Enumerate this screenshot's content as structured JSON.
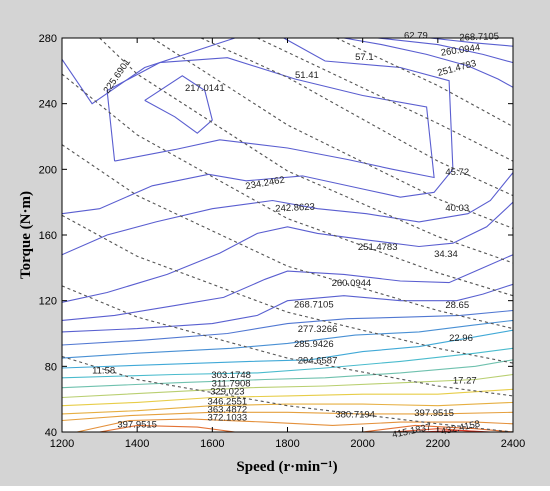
{
  "chart_data": {
    "type": "contour",
    "title": "",
    "xlabel": "Speed (r·min⁻¹)",
    "ylabel": "Torque (N·m)",
    "xlim": [
      1200,
      2400
    ],
    "ylim": [
      40,
      280
    ],
    "x_ticks": [
      "1200",
      "1400",
      "1600",
      "1800",
      "2000",
      "2200",
      "2400"
    ],
    "y_ticks": [
      "40",
      "80",
      "120",
      "160",
      "200",
      "240",
      "280"
    ],
    "grid": false,
    "colors": {
      "frame": "#d4d4d4",
      "plot_bg": "#ffffff",
      "contour_blue": "#5a5ed0",
      "contour_cyan": "#3cb8d8",
      "contour_yellow": "#e8d84a",
      "contour_red": "#e03a2a",
      "dashed": "#555555"
    },
    "efficiency_contours": [
      {
        "label": "217.0141",
        "points": [
          [
            1420,
            242
          ],
          [
            1520,
            257
          ],
          [
            1580,
            248
          ],
          [
            1600,
            230
          ],
          [
            1560,
            222
          ],
          [
            1500,
            232
          ],
          [
            1420,
            242
          ]
        ]
      },
      {
        "label": "225.6901",
        "points": [
          [
            1340,
            205
          ],
          [
            1320,
            248
          ],
          [
            1460,
            265
          ],
          [
            1640,
            268
          ],
          [
            1820,
            255
          ],
          [
            2000,
            245
          ],
          [
            2170,
            238
          ],
          [
            2190,
            195
          ],
          [
            2080,
            200
          ],
          [
            1960,
            206
          ],
          [
            1800,
            213
          ],
          [
            1620,
            218
          ],
          [
            1500,
            212
          ],
          [
            1340,
            205
          ]
        ]
      },
      {
        "label": "234.2462",
        "points": [
          [
            1200,
            267
          ],
          [
            1280,
            240
          ],
          [
            1420,
            262
          ],
          [
            1660,
            280
          ]
        ]
      },
      {
        "label": "234.2462",
        "points": [
          [
            1790,
            280
          ],
          [
            1900,
            266
          ],
          [
            2100,
            262
          ],
          [
            2230,
            254
          ],
          [
            2240,
            200
          ],
          [
            2190,
            186
          ],
          [
            2100,
            183
          ],
          [
            2000,
            188
          ],
          [
            1840,
            196
          ],
          [
            1690,
            193
          ],
          [
            1590,
            197
          ],
          [
            1440,
            190
          ],
          [
            1300,
            176
          ],
          [
            1200,
            173
          ]
        ]
      },
      {
        "label": "242.8623",
        "points": [
          [
            1200,
            148
          ],
          [
            1320,
            160
          ],
          [
            1450,
            168
          ],
          [
            1600,
            176
          ],
          [
            1760,
            181
          ],
          [
            1880,
            176
          ],
          [
            2010,
            173
          ],
          [
            2150,
            168
          ],
          [
            2280,
            173
          ],
          [
            2340,
            181
          ],
          [
            2400,
            198
          ]
        ]
      },
      {
        "label": "251.4783",
        "points": [
          [
            1200,
            119
          ],
          [
            1320,
            125
          ],
          [
            1480,
            136
          ],
          [
            1620,
            149
          ],
          [
            1720,
            161
          ],
          [
            1800,
            165
          ],
          [
            1880,
            161
          ],
          [
            2010,
            157
          ],
          [
            2150,
            153
          ],
          [
            2240,
            155
          ],
          [
            2330,
            165
          ],
          [
            2400,
            180
          ]
        ]
      },
      {
        "label": "251.4783",
        "points": [
          [
            1950,
            280
          ],
          [
            2050,
            276
          ],
          [
            2170,
            270
          ],
          [
            2280,
            263
          ],
          [
            2360,
            255
          ],
          [
            2400,
            250
          ]
        ]
      },
      {
        "label": "260.0944",
        "points": [
          [
            1200,
            108
          ],
          [
            1340,
            111
          ],
          [
            1500,
            117
          ],
          [
            1630,
            122
          ],
          [
            1740,
            133
          ],
          [
            1800,
            138
          ],
          [
            1950,
            136
          ],
          [
            2100,
            132
          ],
          [
            2230,
            131
          ],
          [
            2300,
            138
          ],
          [
            2400,
            148
          ]
        ]
      },
      {
        "label": "260.0944",
        "points": [
          [
            2040,
            280
          ],
          [
            2200,
            276
          ],
          [
            2320,
            270
          ],
          [
            2400,
            265
          ]
        ]
      },
      {
        "label": "268.7105",
        "points": [
          [
            1200,
            101
          ],
          [
            1400,
            103
          ],
          [
            1600,
            106
          ],
          [
            1720,
            111
          ],
          [
            1800,
            120
          ],
          [
            1950,
            123
          ],
          [
            2100,
            120
          ],
          [
            2250,
            120
          ],
          [
            2320,
            124
          ],
          [
            2400,
            130
          ]
        ]
      },
      {
        "label": "268.7105",
        "points": [
          [
            2180,
            280
          ],
          [
            2300,
            277
          ],
          [
            2400,
            275
          ]
        ]
      },
      {
        "label": "277.3266",
        "points": [
          [
            1200,
            93
          ],
          [
            1420,
            96
          ],
          [
            1640,
            100
          ],
          [
            1800,
            106
          ],
          [
            1960,
            109
          ],
          [
            2120,
            110
          ],
          [
            2260,
            111
          ],
          [
            2400,
            114
          ]
        ]
      },
      {
        "label": "285.9426",
        "points": [
          [
            1200,
            85
          ],
          [
            1400,
            88
          ],
          [
            1650,
            91
          ],
          [
            1800,
            94
          ],
          [
            1980,
            99
          ],
          [
            2150,
            101
          ],
          [
            2290,
            105
          ],
          [
            2400,
            108
          ]
        ]
      },
      {
        "label": "294.6587",
        "points": [
          [
            1200,
            79
          ],
          [
            1450,
            81
          ],
          [
            1700,
            83
          ],
          [
            1860,
            84
          ],
          [
            2000,
            89
          ],
          [
            2150,
            92
          ],
          [
            2300,
            98
          ],
          [
            2400,
            102
          ]
        ]
      },
      {
        "label": "303.1748",
        "points": [
          [
            1200,
            73
          ],
          [
            1500,
            75
          ],
          [
            1720,
            76
          ],
          [
            1900,
            79
          ],
          [
            2100,
            83
          ],
          [
            2300,
            88
          ],
          [
            2400,
            91
          ]
        ]
      },
      {
        "label": "311.7908",
        "points": [
          [
            1200,
            67
          ],
          [
            1500,
            70
          ],
          [
            1740,
            72
          ],
          [
            1900,
            73
          ],
          [
            2100,
            76
          ],
          [
            2300,
            80
          ],
          [
            2400,
            84
          ]
        ]
      },
      {
        "label": "329.023",
        "points": [
          [
            1200,
            61
          ],
          [
            1450,
            64
          ],
          [
            1700,
            67
          ],
          [
            1900,
            68
          ],
          [
            2100,
            70
          ],
          [
            2300,
            72
          ],
          [
            2400,
            75
          ]
        ]
      },
      {
        "label": "346.2551",
        "points": [
          [
            1200,
            56
          ],
          [
            1400,
            58
          ],
          [
            1600,
            61
          ],
          [
            1800,
            62
          ],
          [
            2000,
            63
          ],
          [
            2200,
            63
          ],
          [
            2400,
            66
          ]
        ]
      },
      {
        "label": "363.4872",
        "points": [
          [
            1200,
            51
          ],
          [
            1400,
            53
          ],
          [
            1600,
            56
          ],
          [
            1800,
            57
          ],
          [
            2000,
            57
          ],
          [
            2200,
            56
          ],
          [
            2400,
            58
          ]
        ]
      },
      {
        "label": "372.1033",
        "points": [
          [
            1200,
            47
          ],
          [
            1380,
            50
          ],
          [
            1600,
            52
          ],
          [
            1800,
            52
          ],
          [
            2000,
            51
          ],
          [
            2200,
            51
          ],
          [
            2400,
            52
          ]
        ]
      },
      {
        "label": "380.7194",
        "points": [
          [
            1240,
            40
          ],
          [
            1380,
            47
          ],
          [
            1540,
            48
          ],
          [
            1740,
            46
          ],
          [
            1920,
            44
          ],
          [
            2100,
            46
          ],
          [
            2300,
            46
          ],
          [
            2400,
            45
          ]
        ]
      },
      {
        "label": "397.9515",
        "points": [
          [
            1300,
            40
          ],
          [
            1400,
            44
          ],
          [
            1560,
            43
          ],
          [
            1660,
            40
          ]
        ]
      },
      {
        "label": "397.9515",
        "points": [
          [
            2000,
            40
          ],
          [
            2140,
            44
          ],
          [
            2300,
            42
          ],
          [
            2400,
            40
          ]
        ]
      },
      {
        "label": "415.1837",
        "points": [
          [
            2080,
            40
          ],
          [
            2200,
            42
          ],
          [
            2320,
            40
          ]
        ]
      },
      {
        "label": "432.4158",
        "points": [
          [
            2150,
            40
          ],
          [
            2260,
            41
          ],
          [
            2340,
            40
          ]
        ]
      }
    ],
    "contour_labels": [
      {
        "text": "217.0141",
        "x": 1580,
        "y": 250
      },
      {
        "text": "225.6901",
        "x": 1345,
        "y": 257,
        "angle": -55
      },
      {
        "text": "234.2462",
        "x": 1740,
        "y": 192,
        "angle": -10
      },
      {
        "text": "242.8623",
        "x": 1820,
        "y": 177,
        "angle": -3
      },
      {
        "text": "251.4783",
        "x": 2040,
        "y": 153
      },
      {
        "text": "251.4783",
        "x": 2250,
        "y": 262,
        "angle": -15
      },
      {
        "text": "260.0944",
        "x": 1970,
        "y": 131
      },
      {
        "text": "260.0944",
        "x": 2260,
        "y": 273,
        "angle": -8
      },
      {
        "text": "268.7105",
        "x": 1870,
        "y": 118
      },
      {
        "text": "268.7105",
        "x": 2310,
        "y": 281,
        "angle": -2
      },
      {
        "text": "277.3266",
        "x": 1880,
        "y": 103
      },
      {
        "text": "285.9426",
        "x": 1870,
        "y": 94
      },
      {
        "text": "294.6587",
        "x": 1880,
        "y": 84
      },
      {
        "text": "303.1748",
        "x": 1650,
        "y": 75
      },
      {
        "text": "311.7908",
        "x": 1650,
        "y": 70
      },
      {
        "text": "329.023",
        "x": 1640,
        "y": 65
      },
      {
        "text": "346.2551",
        "x": 1640,
        "y": 59
      },
      {
        "text": "363.4872",
        "x": 1640,
        "y": 54
      },
      {
        "text": "372.1033",
        "x": 1640,
        "y": 49
      },
      {
        "text": "380.7194",
        "x": 1980,
        "y": 51
      },
      {
        "text": "397.9515",
        "x": 1400,
        "y": 45
      },
      {
        "text": "397.9515",
        "x": 2190,
        "y": 52
      },
      {
        "text": "415.1837",
        "x": 2130,
        "y": 41,
        "angle": -12
      },
      {
        "text": "432.4158",
        "x": 2260,
        "y": 43,
        "angle": -12
      }
    ],
    "power_lines": [
      {
        "label": "11.58",
        "points": [
          [
            1200,
            86
          ],
          [
            1400,
            72
          ],
          [
            1800,
            56
          ],
          [
            2200,
            45
          ],
          [
            2400,
            40
          ]
        ],
        "label_at": [
          1280,
          78
        ]
      },
      {
        "label": "17.27",
        "points": [
          [
            1200,
            129
          ],
          [
            1400,
            110
          ],
          [
            1800,
            85
          ],
          [
            2200,
            68
          ],
          [
            2400,
            62
          ]
        ],
        "label_at": [
          2240,
          72
        ]
      },
      {
        "label": "22.96",
        "points": [
          [
            1200,
            172
          ],
          [
            1400,
            147
          ],
          [
            1800,
            113
          ],
          [
            2200,
            91
          ],
          [
            2400,
            82
          ]
        ],
        "label_at": [
          2230,
          98
        ]
      },
      {
        "label": "28.65",
        "points": [
          [
            1200,
            215
          ],
          [
            1400,
            184
          ],
          [
            1800,
            141
          ],
          [
            2200,
            114
          ],
          [
            2400,
            103
          ]
        ],
        "label_at": [
          2220,
          118
        ]
      },
      {
        "label": "34.34",
        "points": [
          [
            1200,
            258
          ],
          [
            1400,
            221
          ],
          [
            1800,
            170
          ],
          [
            2200,
            137
          ],
          [
            2400,
            123
          ]
        ],
        "label_at": [
          2190,
          149
        ]
      },
      {
        "label": "40.03",
        "points": [
          [
            1300,
            280
          ],
          [
            1400,
            258
          ],
          [
            1800,
            199
          ],
          [
            2200,
            159
          ],
          [
            2400,
            143
          ]
        ],
        "label_at": [
          2220,
          177
        ]
      },
      {
        "label": "45.72",
        "points": [
          [
            1440,
            280
          ],
          [
            1800,
            227
          ],
          [
            2200,
            182
          ],
          [
            2400,
            164
          ]
        ],
        "label_at": [
          2220,
          199
        ]
      },
      {
        "label": "51.41",
        "points": [
          [
            1570,
            280
          ],
          [
            1800,
            256
          ],
          [
            2200,
            205
          ],
          [
            2400,
            184
          ]
        ],
        "label_at": [
          1820,
          258
        ]
      },
      {
        "label": "57.1",
        "points": [
          [
            1720,
            280
          ],
          [
            2200,
            228
          ],
          [
            2400,
            205
          ]
        ],
        "label_at": [
          1980,
          269
        ]
      },
      {
        "label": "62.79",
        "points": [
          [
            1930,
            280
          ],
          [
            2200,
            251
          ],
          [
            2400,
            226
          ]
        ],
        "label_at": [
          2110,
          282
        ]
      }
    ]
  }
}
